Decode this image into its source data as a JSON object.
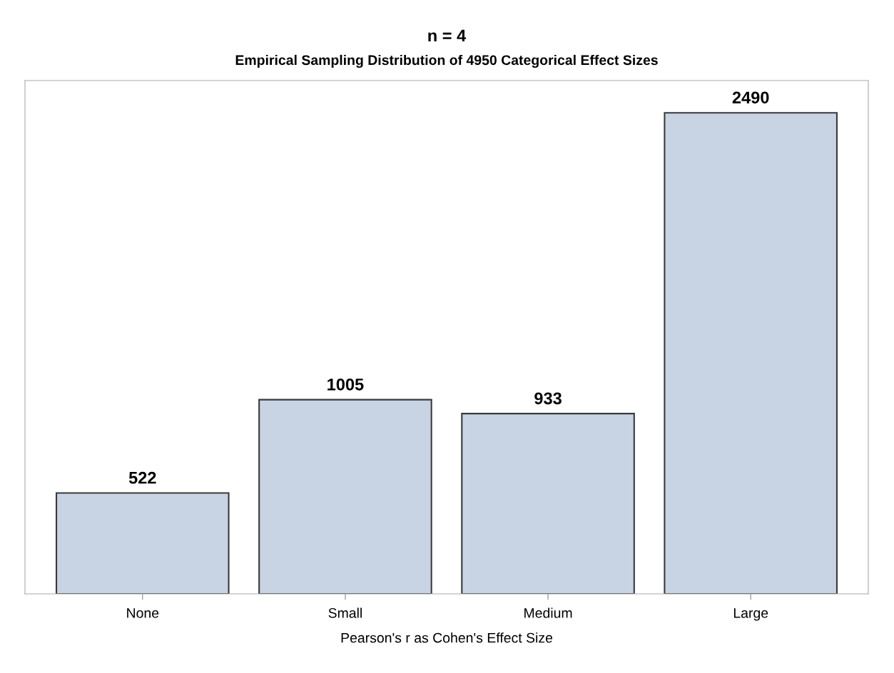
{
  "chart_data": {
    "type": "bar",
    "title": "n = 4",
    "subtitle": "Empirical Sampling Distribution of 4950 Categorical Effect Sizes",
    "xlabel": "Pearson's r as Cohen's Effect Size",
    "categories": [
      "None",
      "Small",
      "Medium",
      "Large"
    ],
    "values": [
      522,
      1005,
      933,
      2490
    ],
    "color": "#c8d4e3",
    "data_labels": true,
    "grid": false,
    "tick_labels": "x"
  }
}
